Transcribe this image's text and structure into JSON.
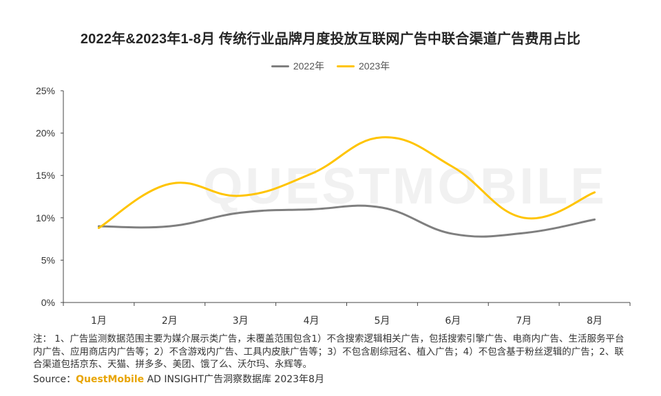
{
  "watermark_text": "QUESTMOBILE",
  "chart_data": {
    "type": "line",
    "title": "2022年&2023年1-8月 传统行业品牌月度投放互联网广告中联合渠道广告费用占比",
    "categories": [
      "1月",
      "2月",
      "3月",
      "4月",
      "5月",
      "6月",
      "7月",
      "8月"
    ],
    "series": [
      {
        "name": "2022年",
        "color": "#7f7f7f",
        "values": [
          9.0,
          9.0,
          10.6,
          11.0,
          11.2,
          8.1,
          8.2,
          9.8
        ]
      },
      {
        "name": "2023年",
        "color": "#ffc400",
        "values": [
          8.8,
          14.0,
          12.6,
          15.2,
          19.5,
          16.0,
          10.0,
          13.0
        ]
      }
    ],
    "ylim": [
      0,
      25
    ],
    "yticks": [
      "0%",
      "5%",
      "10%",
      "15%",
      "20%",
      "25%"
    ],
    "ytick_values": [
      0,
      5,
      10,
      15,
      20,
      25
    ],
    "xlabel": "",
    "ylabel": "",
    "legend_position": "top-center",
    "grid": false
  },
  "note": "注：  1、广告监测数据范围主要为媒介展示类广告，未覆盖范围包含1）不含搜索逻辑相关广告，包括搜索引擎广告、电商内广告、生活服务平台内广告、应用商店内广告等；2）不含游戏内广告、工具内皮肤广告等；3）不包含剧综冠名、植入广告；4）不包含基于粉丝逻辑的广告；2、联合渠道包括京东、天猫、拼多多、美团、饿了么、沃尔玛、永辉等。",
  "source": {
    "label": "Source：",
    "brand": "QuestMobile",
    "rest": " AD INSIGHT广告洞察数据库 2023年8月"
  }
}
